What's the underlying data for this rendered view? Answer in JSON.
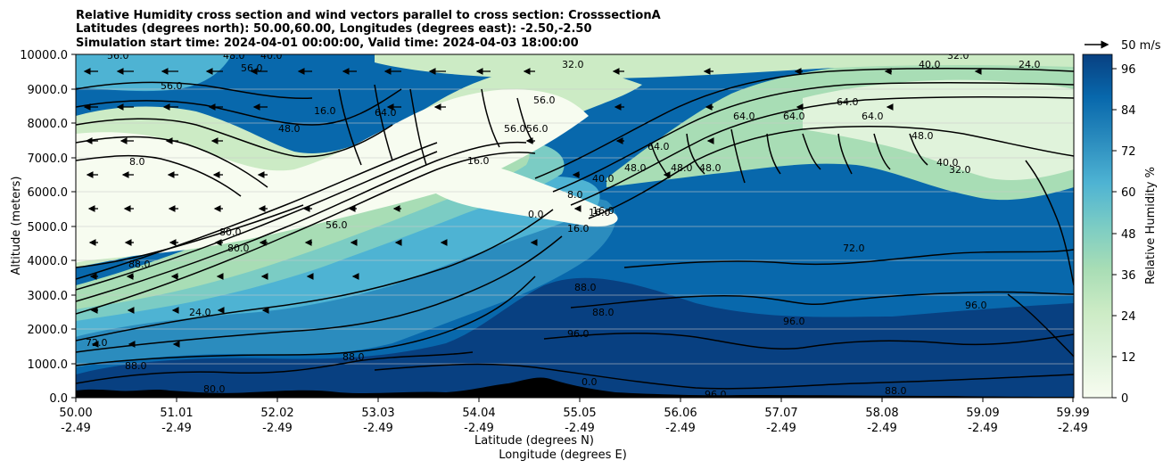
{
  "chart_data": {
    "type": "contour",
    "title_lines": [
      "Relative Humidity cross section and wind vectors parallel to cross section: CrosssectionA",
      "Latitudes (degrees north): 50.00,60.00, Longitudes (degrees east): -2.50,-2.50",
      "Simulation start time: 2024-04-01 00:00:00, Valid time: 2024-04-03 18:00:00"
    ],
    "ylabel": "Altitude (meters)",
    "xlabel_lines": [
      "Latitude (degrees N)",
      "Longitude (degrees E)"
    ],
    "ylim": [
      0,
      10000
    ],
    "y_ticks": [
      "0.0",
      "1000.0",
      "2000.0",
      "3000.0",
      "4000.0",
      "5000.0",
      "6000.0",
      "7000.0",
      "8000.0",
      "9000.0",
      "10000.0"
    ],
    "x_ticks": [
      {
        "lat": "50.00",
        "lon": "-2.49"
      },
      {
        "lat": "51.01",
        "lon": "-2.49"
      },
      {
        "lat": "52.02",
        "lon": "-2.49"
      },
      {
        "lat": "53.03",
        "lon": "-2.49"
      },
      {
        "lat": "54.04",
        "lon": "-2.49"
      },
      {
        "lat": "55.05",
        "lon": "-2.49"
      },
      {
        "lat": "56.06",
        "lon": "-2.49"
      },
      {
        "lat": "57.07",
        "lon": "-2.49"
      },
      {
        "lat": "58.08",
        "lon": "-2.49"
      },
      {
        "lat": "59.09",
        "lon": "-2.49"
      },
      {
        "lat": "59.99",
        "lon": "-2.49"
      }
    ],
    "grid": "horizontal",
    "colorbar": {
      "label": "Relative Humidity %",
      "ticks": [
        "0",
        "12",
        "24",
        "36",
        "48",
        "60",
        "72",
        "84",
        "96"
      ],
      "colors": [
        "#f7fcf0",
        "#e0f3db",
        "#ccebc5",
        "#a8ddb5",
        "#7bccc4",
        "#4eb3d3",
        "#2b8cbe",
        "#0868ac",
        "#084081"
      ],
      "range": [
        0,
        100
      ]
    },
    "quiver_key": "50 m/s",
    "contour_labels": [
      "56.0",
      "48.0",
      "40.0",
      "56.0",
      "56.0",
      "16.0",
      "48.0",
      "64.0",
      "56.0",
      "32.0",
      "16.0",
      "56.0",
      "56.0",
      "64.0",
      "64.0",
      "64.0",
      "64.0",
      "48.0",
      "40.0",
      "32.0",
      "24.0",
      "40.0",
      "32.0",
      "8.0",
      "16.0",
      "64.0",
      "48.0",
      "48.0",
      "48.0",
      "40.0",
      "8.0",
      "16.0",
      "56.0",
      "88.0",
      "80.0",
      "72.0",
      "88.0",
      "96.0",
      "96.0",
      "96.0",
      "72.0",
      "88.0",
      "88.0",
      "24.0",
      "16.0",
      "0.0",
      "0.0",
      "88.0",
      "80.0",
      "96.0",
      "88.0",
      "80.0"
    ]
  }
}
